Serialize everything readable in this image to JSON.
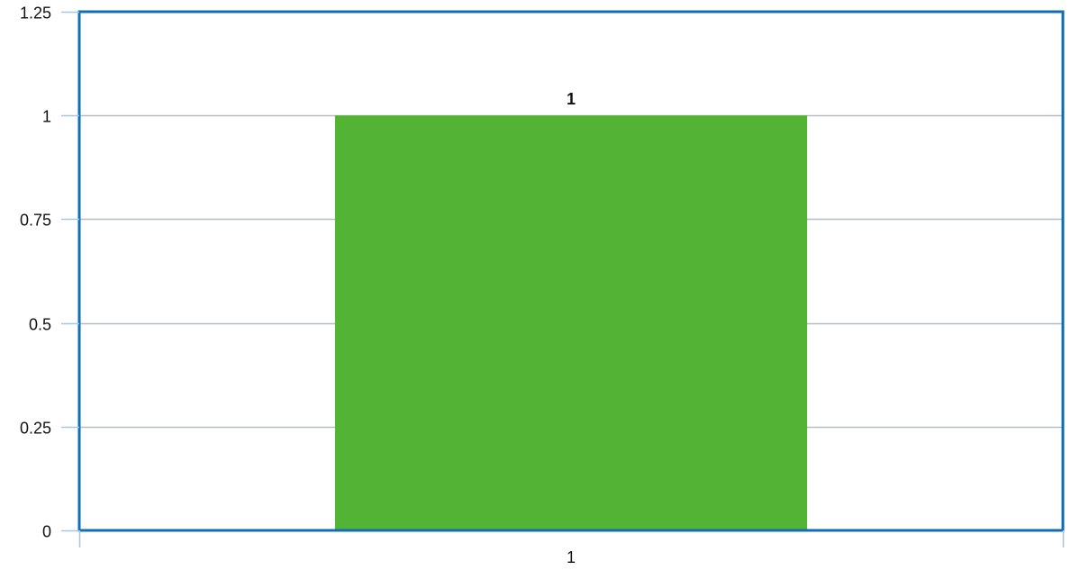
{
  "chart_data": {
    "type": "bar",
    "categories": [
      "1"
    ],
    "values": [
      1
    ],
    "data_labels": [
      "1"
    ],
    "ylim": [
      0,
      1.25
    ],
    "y_ticks": [
      {
        "value": 0,
        "label": "0"
      },
      {
        "value": 0.25,
        "label": "0.25"
      },
      {
        "value": 0.5,
        "label": "0.5"
      },
      {
        "value": 0.75,
        "label": "0.75"
      },
      {
        "value": 1,
        "label": "1"
      },
      {
        "value": 1.25,
        "label": "1.25"
      }
    ],
    "grid": true,
    "colors": {
      "bar": "#52b334",
      "frame": "#0f6fb5",
      "grid": "#b7bcc3",
      "axis_ticks": "#a9c5e0"
    }
  }
}
